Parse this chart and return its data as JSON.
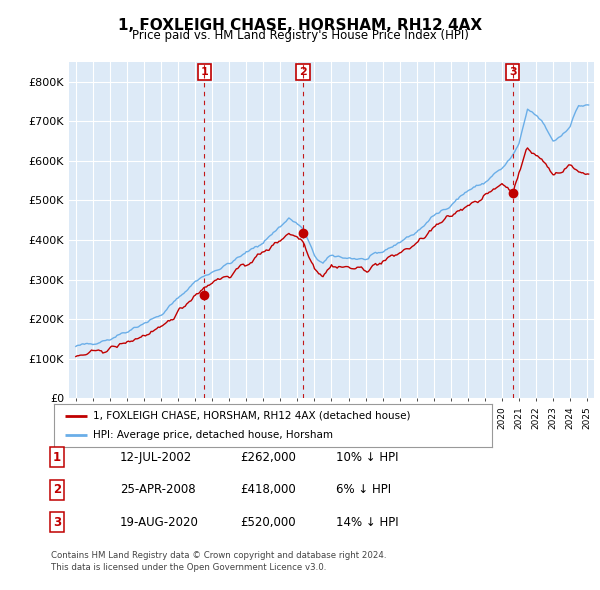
{
  "title": "1, FOXLEIGH CHASE, HORSHAM, RH12 4AX",
  "subtitle": "Price paid vs. HM Land Registry's House Price Index (HPI)",
  "ylim": [
    0,
    850000
  ],
  "yticks": [
    0,
    100000,
    200000,
    300000,
    400000,
    500000,
    600000,
    700000,
    800000
  ],
  "ytick_labels": [
    "£0",
    "£100K",
    "£200K",
    "£300K",
    "£400K",
    "£500K",
    "£600K",
    "£700K",
    "£800K"
  ],
  "hpi_color": "#6aaee8",
  "price_color": "#c00000",
  "dashed_color": "#c00000",
  "bg_plot": "#ddeaf7",
  "bg_figure": "#ffffff",
  "grid_color": "#ffffff",
  "transactions": [
    {
      "label": "1",
      "year": 2002.54,
      "price": 262000
    },
    {
      "label": "2",
      "year": 2008.32,
      "price": 418000
    },
    {
      "label": "3",
      "year": 2020.64,
      "price": 520000
    }
  ],
  "legend_line1": "1, FOXLEIGH CHASE, HORSHAM, RH12 4AX (detached house)",
  "legend_line2": "HPI: Average price, detached house, Horsham",
  "footer1": "Contains HM Land Registry data © Crown copyright and database right 2024.",
  "footer2": "This data is licensed under the Open Government Licence v3.0.",
  "table_rows": [
    {
      "num": "1",
      "date": "12-JUL-2002",
      "price": "£262,000",
      "hpi": "10% ↓ HPI"
    },
    {
      "num": "2",
      "date": "25-APR-2008",
      "price": "£418,000",
      "hpi": "6% ↓ HPI"
    },
    {
      "num": "3",
      "date": "19-AUG-2020",
      "price": "£520,000",
      "hpi": "14% ↓ HPI"
    }
  ]
}
